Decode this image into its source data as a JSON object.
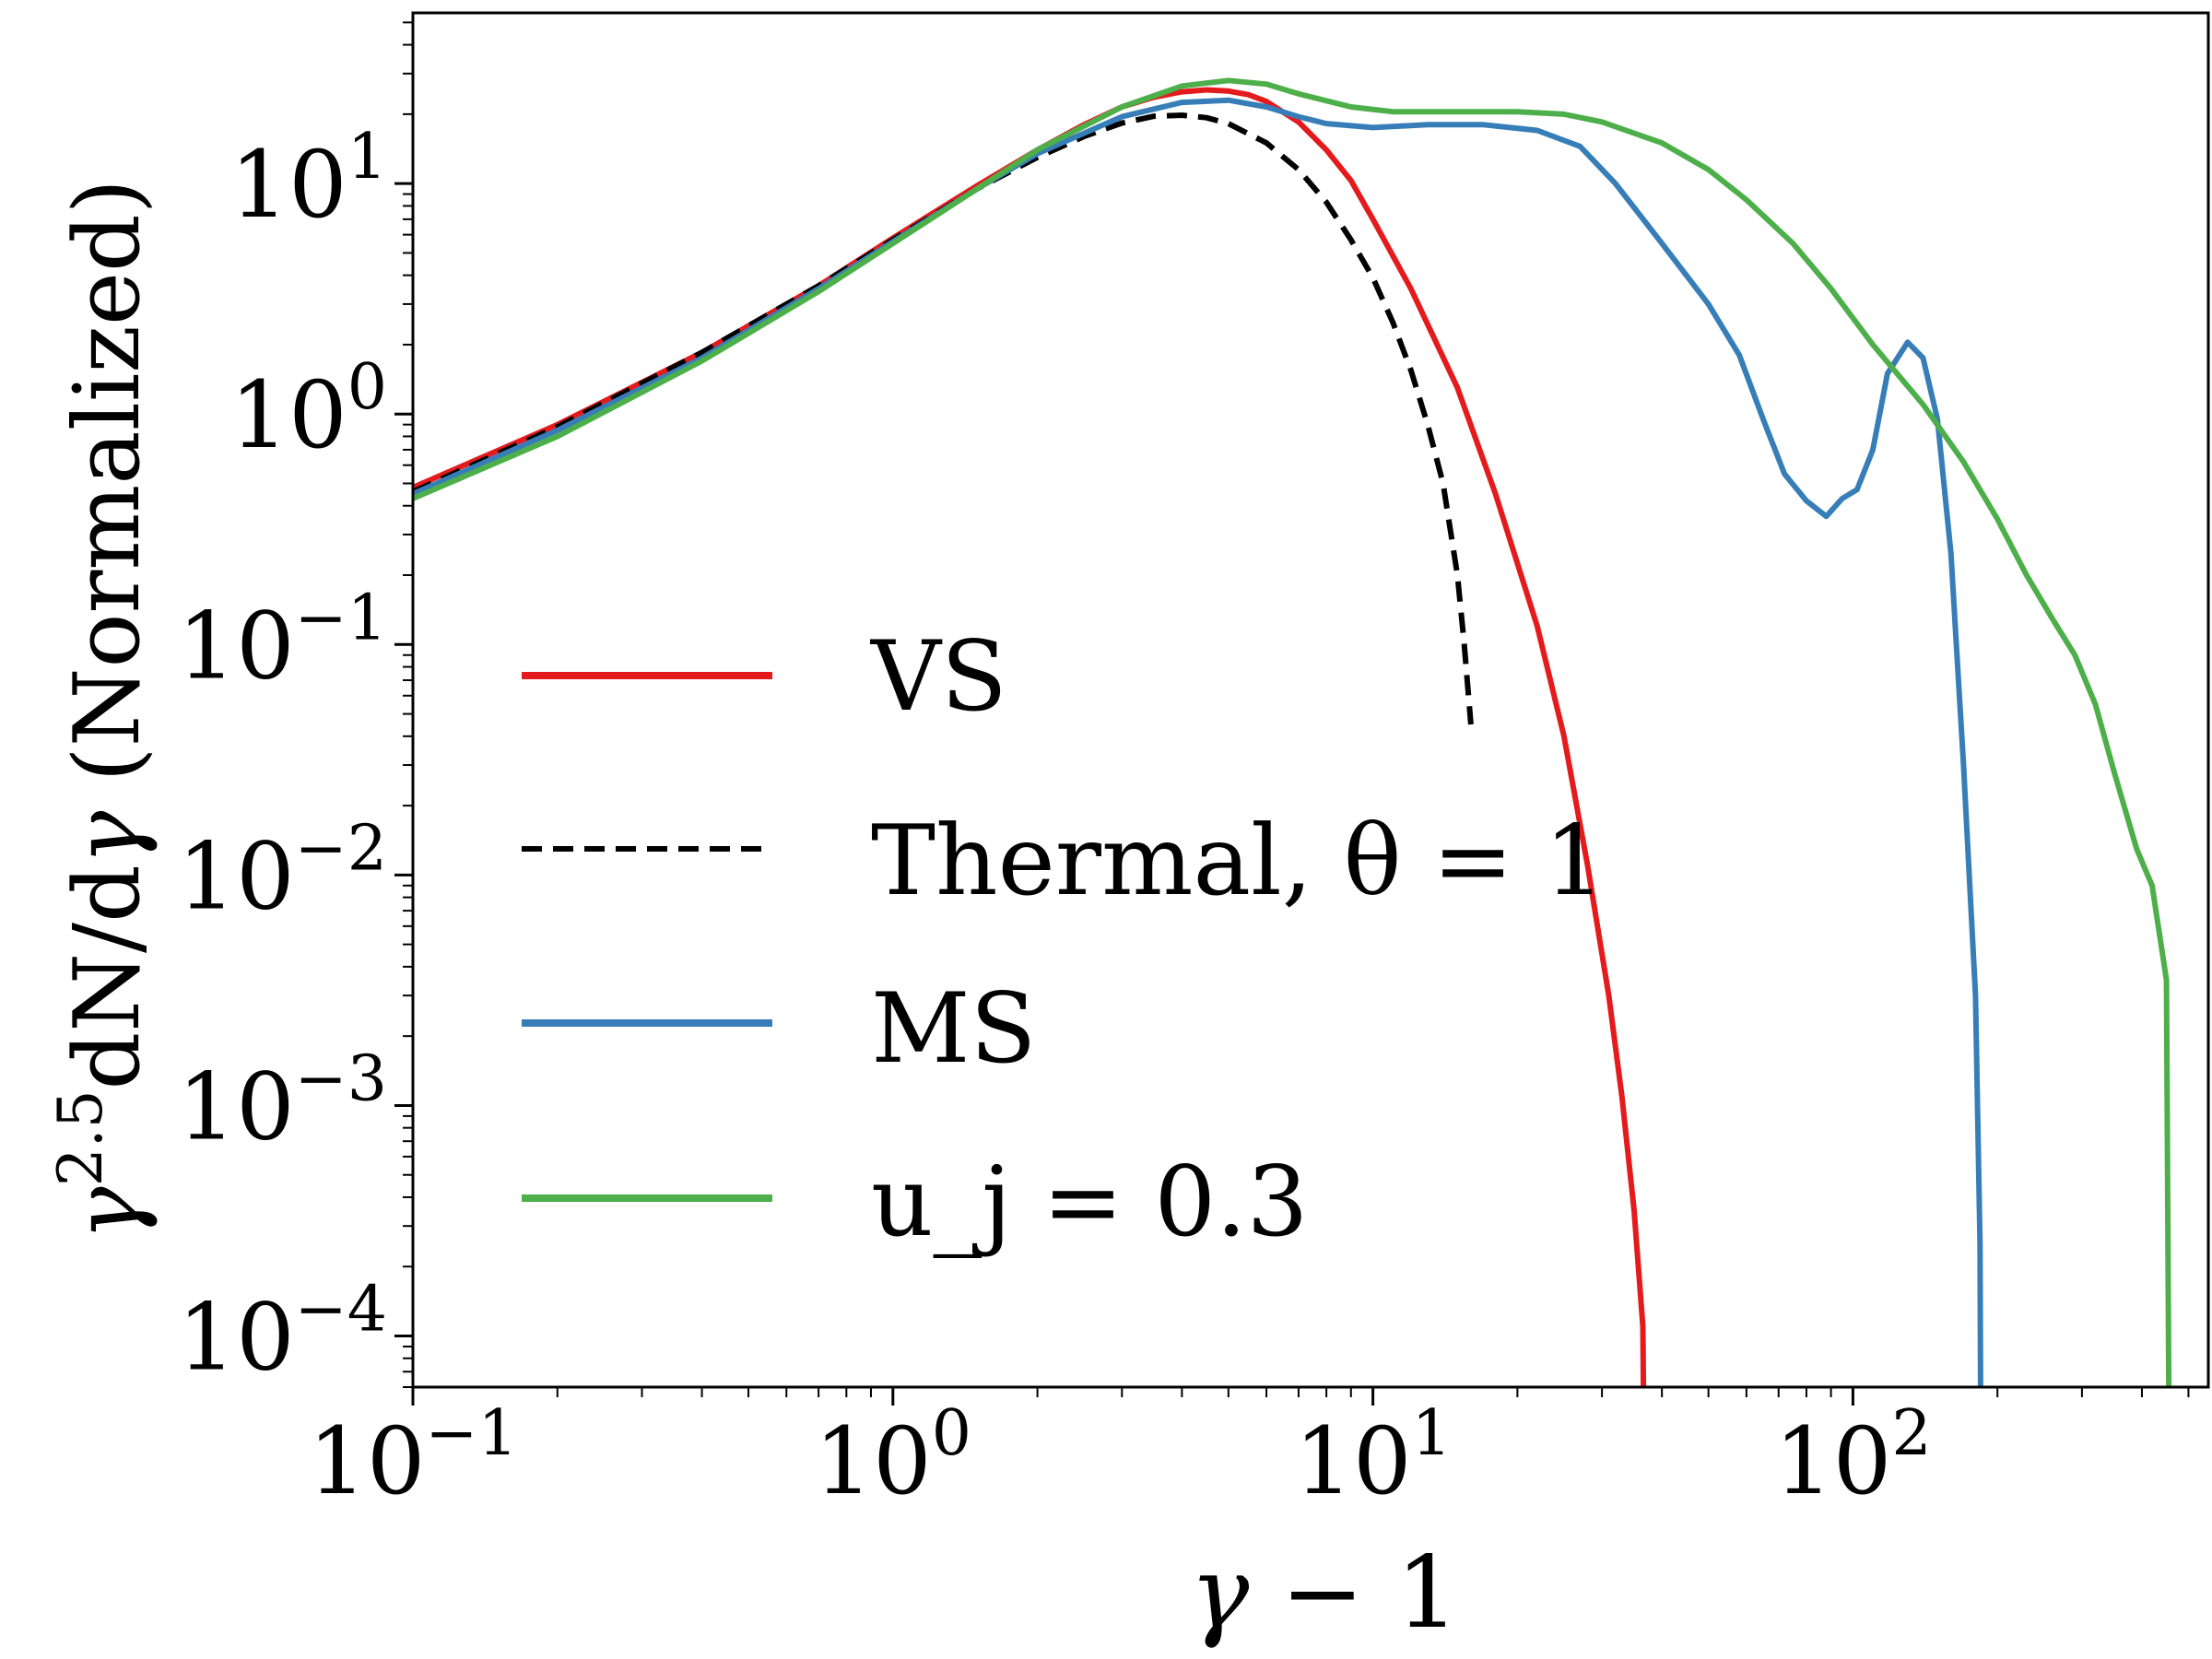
{
  "chart_data": {
    "type": "line",
    "title": "",
    "xlabel": "γ − 1",
    "ylabel": "γ^2.5 dN/dγ (Normalized)",
    "xscale": "log",
    "yscale": "log",
    "xlim": [
      0.1,
      550
    ],
    "ylim": [
      6e-05,
      55
    ],
    "xticks": [
      {
        "value": 0.1,
        "base": "10",
        "exp": "−1"
      },
      {
        "value": 1,
        "base": "10",
        "exp": "0"
      },
      {
        "value": 10,
        "base": "10",
        "exp": "1"
      },
      {
        "value": 100,
        "base": "10",
        "exp": "2"
      }
    ],
    "yticks": [
      {
        "value": 0.0001,
        "base": "10",
        "exp": "−4"
      },
      {
        "value": 0.001,
        "base": "10",
        "exp": "−3"
      },
      {
        "value": 0.01,
        "base": "10",
        "exp": "−2"
      },
      {
        "value": 0.1,
        "base": "10",
        "exp": "−1"
      },
      {
        "value": 1,
        "base": "10",
        "exp": "0"
      },
      {
        "value": 10,
        "base": "10",
        "exp": "1"
      }
    ],
    "grid": false,
    "legend_position": "lower-left",
    "series": [
      {
        "name": "VS",
        "color": "#e41a1c",
        "dash": "solid",
        "points": [
          [
            0.1,
            0.48
          ],
          [
            0.2,
            0.9
          ],
          [
            0.4,
            1.85
          ],
          [
            0.7,
            3.6
          ],
          [
            1.0,
            5.8
          ],
          [
            1.5,
            9.8
          ],
          [
            2.0,
            14.0
          ],
          [
            2.5,
            18.0
          ],
          [
            3.0,
            21.5
          ],
          [
            3.5,
            23.7
          ],
          [
            4.0,
            25.0
          ],
          [
            4.5,
            25.5
          ],
          [
            5.0,
            25.2
          ],
          [
            5.5,
            24.3
          ],
          [
            6.0,
            22.7
          ],
          [
            7.0,
            18.5
          ],
          [
            8.0,
            14.0
          ],
          [
            9.0,
            10.3
          ],
          [
            10.0,
            7.0
          ],
          [
            12.0,
            3.5
          ],
          [
            15.0,
            1.3
          ],
          [
            18.0,
            0.45
          ],
          [
            22.0,
            0.12
          ],
          [
            25.0,
            0.04
          ],
          [
            28.0,
            0.011
          ],
          [
            31.0,
            0.003
          ],
          [
            33.0,
            0.0011
          ],
          [
            35.0,
            0.00035
          ],
          [
            36.5,
            0.00011
          ],
          [
            36.6,
            6e-05
          ]
        ]
      },
      {
        "name": "Thermal, θ = 1",
        "color": "#000000",
        "dash": "dashed",
        "points": [
          [
            0.1,
            0.46
          ],
          [
            0.2,
            0.88
          ],
          [
            0.4,
            1.85
          ],
          [
            0.7,
            3.6
          ],
          [
            1.0,
            5.7
          ],
          [
            1.5,
            9.5
          ],
          [
            2.0,
            13.0
          ],
          [
            2.5,
            16.0
          ],
          [
            3.0,
            18.3
          ],
          [
            3.5,
            19.6
          ],
          [
            4.0,
            19.8
          ],
          [
            4.5,
            19.3
          ],
          [
            5.0,
            18.2
          ],
          [
            6.0,
            15.0
          ],
          [
            7.0,
            11.5
          ],
          [
            8.0,
            8.3
          ],
          [
            9.0,
            5.7
          ],
          [
            10.0,
            3.9
          ],
          [
            11.0,
            2.5
          ],
          [
            12.0,
            1.55
          ],
          [
            13.0,
            0.9
          ],
          [
            14.0,
            0.5
          ],
          [
            15.0,
            0.2
          ],
          [
            15.5,
            0.1
          ],
          [
            16.0,
            0.045
          ]
        ]
      },
      {
        "name": "MS",
        "color": "#377eb8",
        "dash": "solid",
        "points": [
          [
            0.1,
            0.45
          ],
          [
            0.2,
            0.85
          ],
          [
            0.4,
            1.75
          ],
          [
            0.7,
            3.5
          ],
          [
            1.0,
            5.6
          ],
          [
            1.5,
            9.5
          ],
          [
            2.0,
            13.5
          ],
          [
            3.0,
            19.5
          ],
          [
            4.0,
            22.5
          ],
          [
            5.0,
            23.0
          ],
          [
            6.0,
            21.5
          ],
          [
            7.0,
            19.5
          ],
          [
            8.0,
            18.2
          ],
          [
            10.0,
            17.5
          ],
          [
            13.0,
            18.0
          ],
          [
            17.0,
            18.0
          ],
          [
            22.0,
            17.0
          ],
          [
            27.0,
            14.5
          ],
          [
            32.0,
            10.0
          ],
          [
            40.0,
            5.5
          ],
          [
            50.0,
            3.0
          ],
          [
            58.0,
            1.8
          ],
          [
            65.0,
            0.95
          ],
          [
            72.0,
            0.55
          ],
          [
            80.0,
            0.42
          ],
          [
            88.0,
            0.36
          ],
          [
            95.0,
            0.43
          ],
          [
            102.0,
            0.47
          ],
          [
            110.0,
            0.7
          ],
          [
            118.0,
            1.5
          ],
          [
            130.0,
            2.05
          ],
          [
            140.0,
            1.75
          ],
          [
            150.0,
            0.95
          ],
          [
            160.0,
            0.25
          ],
          [
            170.0,
            0.03
          ],
          [
            180.0,
            0.003
          ],
          [
            184.0,
            0.00025
          ],
          [
            184.5,
            6e-05
          ]
        ]
      },
      {
        "name": "u_j = 0.3",
        "color": "#4daf4a",
        "dash": "solid",
        "points": [
          [
            0.1,
            0.43
          ],
          [
            0.2,
            0.8
          ],
          [
            0.4,
            1.7
          ],
          [
            0.7,
            3.4
          ],
          [
            1.0,
            5.5
          ],
          [
            1.5,
            9.5
          ],
          [
            2.0,
            14.0
          ],
          [
            3.0,
            21.5
          ],
          [
            4.0,
            26.5
          ],
          [
            5.0,
            28.0
          ],
          [
            6.0,
            27.0
          ],
          [
            7.0,
            24.5
          ],
          [
            9.0,
            21.5
          ],
          [
            11.0,
            20.5
          ],
          [
            15.0,
            20.5
          ],
          [
            20.0,
            20.5
          ],
          [
            25.0,
            20.0
          ],
          [
            30.0,
            18.5
          ],
          [
            40.0,
            15.0
          ],
          [
            50.0,
            11.5
          ],
          [
            60.0,
            8.5
          ],
          [
            75.0,
            5.5
          ],
          [
            90.0,
            3.5
          ],
          [
            110.0,
            2.0
          ],
          [
            140.0,
            1.1
          ],
          [
            170.0,
            0.62
          ],
          [
            200.0,
            0.35
          ],
          [
            230.0,
            0.2
          ],
          [
            260.0,
            0.13
          ],
          [
            290.0,
            0.09
          ],
          [
            320.0,
            0.055
          ],
          [
            350.0,
            0.028
          ],
          [
            390.0,
            0.013
          ],
          [
            420.0,
            0.009
          ],
          [
            450.0,
            0.0035
          ],
          [
            455.0,
            6e-05
          ]
        ]
      }
    ],
    "legend": [
      {
        "label": "VS"
      },
      {
        "label": "Thermal, θ = 1"
      },
      {
        "label": "MS"
      },
      {
        "label": "u_j = 0.3"
      }
    ]
  }
}
